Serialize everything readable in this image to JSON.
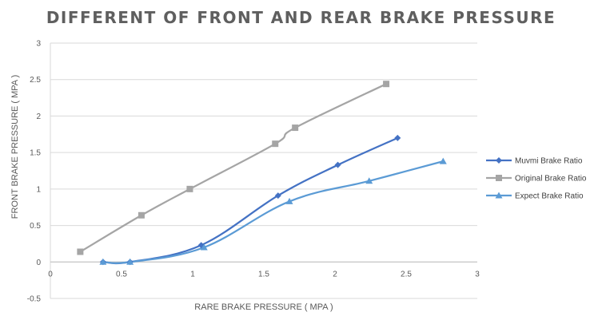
{
  "chart_data": {
    "type": "line",
    "title": "DIFFERENT OF FRONT AND REAR BRAKE PRESSURE",
    "xlabel": "RARE BRAKE PRESSURE ( MPA )",
    "ylabel": "FRONT BRAKE PRESSURE ( MPA )",
    "xlim": [
      0,
      3
    ],
    "ylim": [
      -0.5,
      3
    ],
    "x_ticks": [
      0,
      0.5,
      1,
      1.5,
      2,
      2.5,
      3
    ],
    "x_tick_labels": [
      "0",
      "0.5",
      "1",
      "1.5",
      "2",
      "2.5",
      "3"
    ],
    "y_ticks": [
      -0.5,
      0,
      0.5,
      1,
      1.5,
      2,
      2.5,
      3
    ],
    "y_tick_labels": [
      "-0.5",
      "0",
      "0.5",
      "1",
      "1.5",
      "2",
      "2.5",
      "3"
    ],
    "grid": "horizontal",
    "legend_position": "right",
    "series": [
      {
        "name": "Muvmi Brake Ratio",
        "marker": "diamond",
        "color": "#4472c4",
        "points": [
          [
            0.37,
            0.0
          ],
          [
            0.56,
            0.0
          ],
          [
            1.06,
            0.23
          ],
          [
            1.6,
            0.91
          ],
          [
            2.02,
            1.33
          ],
          [
            2.44,
            1.7
          ]
        ]
      },
      {
        "name": "Original Brake Ratio",
        "marker": "square",
        "color": "#a5a5a5",
        "points": [
          [
            0.21,
            0.14
          ],
          [
            0.64,
            0.64
          ],
          [
            0.98,
            1.0
          ],
          [
            1.58,
            1.62
          ],
          [
            1.72,
            1.84
          ],
          [
            2.36,
            2.44
          ]
        ]
      },
      {
        "name": "Expect Brake Ratio",
        "marker": "triangle",
        "color": "#5b9bd5",
        "points": [
          [
            0.37,
            0.0
          ],
          [
            0.56,
            0.0
          ],
          [
            1.08,
            0.2
          ],
          [
            1.68,
            0.83
          ],
          [
            2.24,
            1.11
          ],
          [
            2.76,
            1.38
          ]
        ]
      }
    ]
  }
}
